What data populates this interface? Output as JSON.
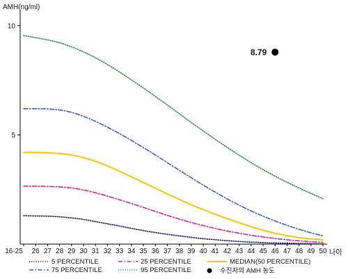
{
  "chart_data": {
    "type": "line",
    "ylabel": "AMH(ng/ml)",
    "xlabel": "나이",
    "ylim": [
      0,
      10.6
    ],
    "yticks": [
      5,
      10
    ],
    "categories": [
      "16-25",
      "26",
      "27",
      "28",
      "29",
      "30",
      "31",
      "32",
      "33",
      "34",
      "35",
      "36",
      "37",
      "38",
      "39",
      "40",
      "41",
      "42",
      "43",
      "44",
      "45",
      "46",
      "47",
      "48",
      "49",
      "50"
    ],
    "series": [
      {
        "name": "5 PERCENTILE",
        "color": "#1a1a5e",
        "dash": "dot",
        "values": [
          1.3,
          1.29,
          1.28,
          1.25,
          1.2,
          1.13,
          1.03,
          0.93,
          0.83,
          0.72,
          0.62,
          0.53,
          0.45,
          0.38,
          0.31,
          0.25,
          0.2,
          0.16,
          0.12,
          0.09,
          0.07,
          0.05,
          0.04,
          0.03,
          0.02,
          0.01
        ]
      },
      {
        "name": "25 PERCENTILE",
        "color": "#e0208a",
        "dash": "dashdot",
        "values": [
          2.65,
          2.65,
          2.64,
          2.62,
          2.57,
          2.48,
          2.35,
          2.2,
          2.03,
          1.86,
          1.68,
          1.5,
          1.32,
          1.15,
          0.99,
          0.85,
          0.72,
          0.6,
          0.5,
          0.41,
          0.33,
          0.26,
          0.2,
          0.15,
          0.11,
          0.08
        ]
      },
      {
        "name": "MEDIAN(50 PERCENTILE)",
        "color": "#f5c800",
        "dash": "solid",
        "values": [
          4.2,
          4.2,
          4.18,
          4.15,
          4.08,
          3.96,
          3.79,
          3.58,
          3.34,
          3.08,
          2.82,
          2.56,
          2.3,
          2.05,
          1.8,
          1.58,
          1.37,
          1.17,
          0.98,
          0.8,
          0.64,
          0.5,
          0.39,
          0.3,
          0.24,
          0.2
        ]
      },
      {
        "name": "75 PERCENTILE",
        "color": "#3a5fcd",
        "dash": "dashdot",
        "values": [
          6.2,
          6.2,
          6.19,
          6.14,
          6.03,
          5.85,
          5.62,
          5.35,
          5.06,
          4.75,
          4.42,
          4.08,
          3.73,
          3.38,
          3.04,
          2.7,
          2.38,
          2.07,
          1.78,
          1.52,
          1.28,
          1.06,
          0.86,
          0.68,
          0.52,
          0.38
        ]
      },
      {
        "name": "95 PERCENTILE",
        "color": "#2e8b57",
        "dash": "dot",
        "values": [
          9.55,
          9.45,
          9.35,
          9.22,
          9.03,
          8.8,
          8.53,
          8.22,
          7.88,
          7.52,
          7.15,
          6.76,
          6.37,
          5.97,
          5.57,
          5.18,
          4.8,
          4.43,
          4.07,
          3.73,
          3.41,
          3.11,
          2.83,
          2.57,
          2.32,
          2.08
        ]
      }
    ],
    "patient": {
      "label": "수진자의 AMH 농도",
      "x": "46",
      "y": 8.79,
      "text": "8.79"
    },
    "legend_placement": "bottom",
    "grid": false
  }
}
